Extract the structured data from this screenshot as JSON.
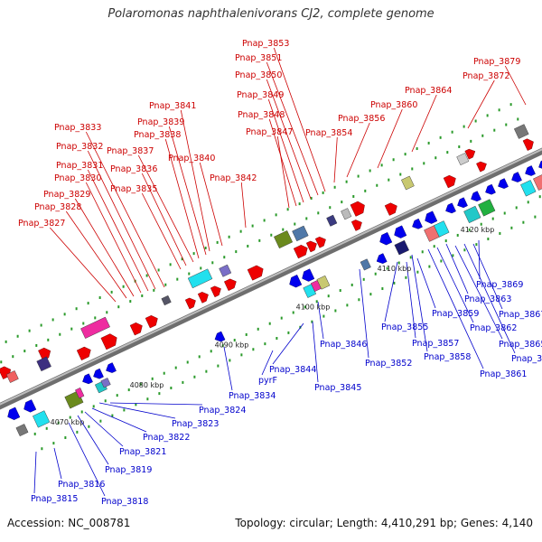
{
  "title": "Polaromonas naphthalenivorans CJ2, complete genome",
  "footer": {
    "accession": "Accession: NC_008781",
    "summary": "Topology: circular; Length: 4,410,291 bp; Genes: 4,140"
  },
  "colors": {
    "forward_label": "#cc0000",
    "reverse_label": "#0000cc",
    "forward_gene": "#ee0000",
    "reverse_gene": "#0000ee",
    "backbone": "#8c8c8c"
  },
  "scale_ticks": [
    "4070 kbp",
    "4080 kbp",
    "4090 kbp",
    "4100 kbp",
    "4110 kbp",
    "4120 kbp"
  ],
  "top_labels": [
    "Pnap_3827",
    "Pnap_3828",
    "Pnap_3829",
    "Pnap_3830",
    "Pnap_3831",
    "Pnap_3832",
    "Pnap_3833",
    "Pnap_3835",
    "Pnap_3836",
    "Pnap_3837",
    "Pnap_3838",
    "Pnap_3839",
    "Pnap_3841",
    "Pnap_3840",
    "Pnap_3842",
    "Pnap_3847",
    "Pnap_3848",
    "Pnap_3849",
    "Pnap_3850",
    "Pnap_3851",
    "Pnap_3853",
    "Pnap_3854",
    "Pnap_3856",
    "Pnap_3860",
    "Pnap_3864",
    "Pnap_3872",
    "Pnap_3879"
  ],
  "bottom_labels": [
    "Pnap_3815",
    "Pnap_3816",
    "Pnap_3818",
    "Pnap_3819",
    "Pnap_3821",
    "Pnap_3822",
    "Pnap_3823",
    "Pnap_3824",
    "Pnap_3834",
    "pyrF",
    "Pnap_3844",
    "Pnap_3845",
    "Pnap_3846",
    "Pnap_3852",
    "Pnap_3855",
    "Pnap_3857",
    "Pnap_3858",
    "Pnap_3859",
    "Pnap_3861",
    "Pnap_3862",
    "Pnap_3863",
    "Pnap_3865",
    "Pnap_3866",
    "Pnap_3867",
    "Pnap_3869"
  ]
}
